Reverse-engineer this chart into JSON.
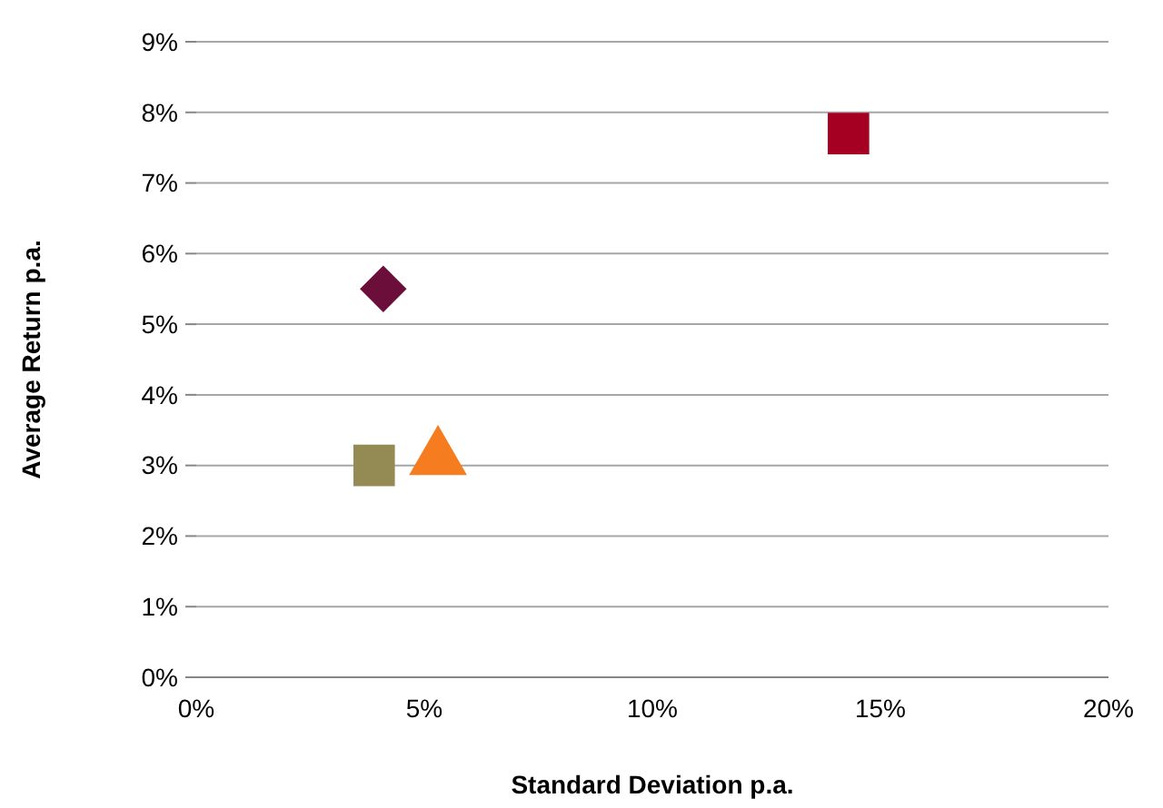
{
  "chart_data": {
    "type": "scatter",
    "xlabel": "Standard Deviation p.a.",
    "ylabel": "Average Return p.a.",
    "xlim": [
      0,
      20
    ],
    "xticks": [
      {
        "value": 0,
        "label": "0%"
      },
      {
        "value": 5,
        "label": "5%"
      },
      {
        "value": 10,
        "label": "10%"
      },
      {
        "value": 15,
        "label": "15%"
      },
      {
        "value": 20,
        "label": "20%"
      }
    ],
    "ylim": [
      0,
      9
    ],
    "yticks": [
      {
        "value": 0,
        "label": "0%"
      },
      {
        "value": 1,
        "label": "1%"
      },
      {
        "value": 2,
        "label": "2%"
      },
      {
        "value": 3,
        "label": "3%"
      },
      {
        "value": 4,
        "label": "4%"
      },
      {
        "value": 5,
        "label": "5%"
      },
      {
        "value": 6,
        "label": "6%"
      },
      {
        "value": 7,
        "label": "7%"
      },
      {
        "value": 8,
        "label": "8%"
      },
      {
        "value": 9,
        "label": "9%"
      }
    ],
    "grid": "y",
    "series": [
      {
        "marker": "square",
        "color": "#a50021",
        "x": [
          14.3
        ],
        "values": [
          7.7
        ]
      },
      {
        "marker": "diamond",
        "color": "#6b0f3a",
        "x": [
          4.1
        ],
        "values": [
          5.5
        ]
      },
      {
        "marker": "square",
        "color": "#948a54",
        "x": [
          3.9
        ],
        "values": [
          3.0
        ]
      },
      {
        "marker": "triangle",
        "color": "#f57c1f",
        "x": [
          5.3
        ],
        "values": [
          3.1
        ]
      }
    ]
  }
}
